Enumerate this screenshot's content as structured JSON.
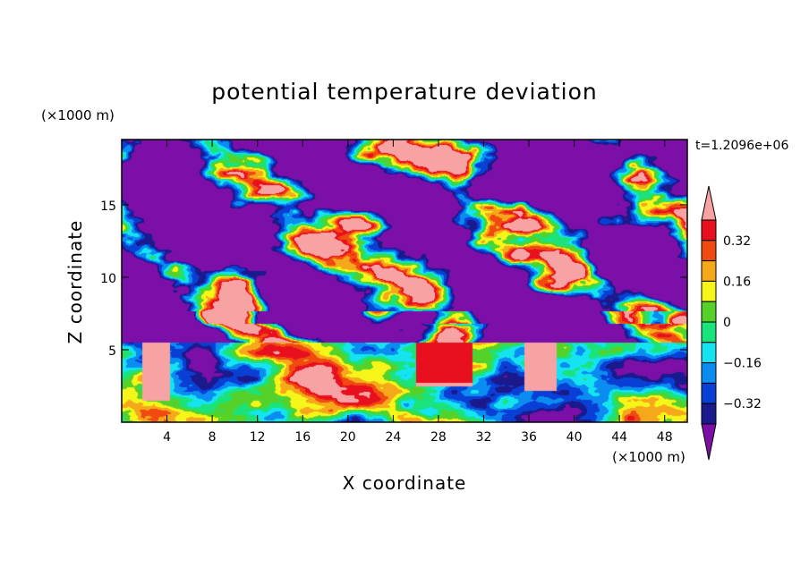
{
  "chart_data": {
    "type": "heatmap",
    "title": "potential temperature deviation",
    "xlabel": "X coordinate",
    "ylabel": "Z coordinate",
    "x_unit": "(×1000 m)",
    "y_unit": "(×1000 m)",
    "time_label": "t=1.2096e+06",
    "xlim": [
      0,
      50
    ],
    "ylim": [
      0,
      19.5
    ],
    "x_ticks": [
      4,
      8,
      12,
      16,
      20,
      24,
      28,
      32,
      36,
      40,
      44,
      48
    ],
    "y_ticks": [
      5,
      10,
      15
    ],
    "colorbar": {
      "levels": [
        -0.4,
        -0.32,
        -0.24,
        -0.16,
        -0.08,
        0,
        0.08,
        0.16,
        0.24,
        0.32,
        0.4
      ],
      "tick_labels": [
        "0.32",
        "0.16",
        "0",
        "−0.16",
        "−0.32"
      ],
      "tick_values": [
        0.32,
        0.16,
        0,
        -0.16,
        -0.32
      ],
      "colors": [
        "#7b0fa8",
        "#1a1a8c",
        "#0a3fd6",
        "#0a8cf0",
        "#15e3f0",
        "#19e37a",
        "#55d22a",
        "#f5f51a",
        "#f5a81a",
        "#f04a10",
        "#e8101e",
        "#f7a3a3"
      ],
      "extend": "both"
    },
    "regions_description_free": true
  }
}
